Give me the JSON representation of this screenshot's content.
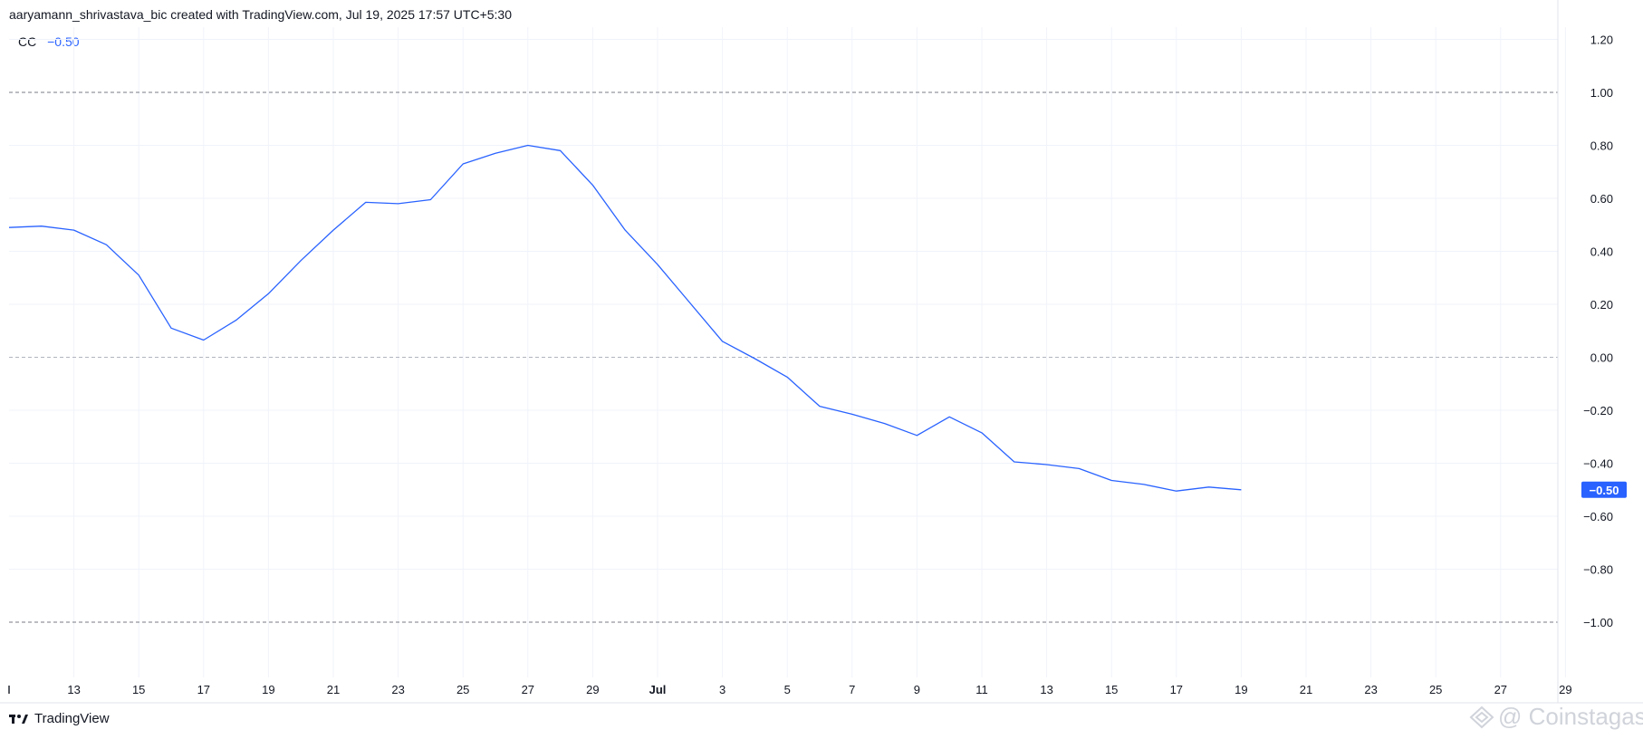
{
  "header": {
    "attribution": "aaryamann_shrivastava_bic created with TradingView.com, Jul 19, 2025 17:57 UTC+5:30"
  },
  "legend": {
    "name": "CC",
    "value": "−0.50"
  },
  "brand": {
    "label": "TradingView",
    "icon": "tradingview-logo-icon"
  },
  "watermark": {
    "label": "@ Coinstagas",
    "icon": "coinstats-logo-icon"
  },
  "colors": {
    "line": "#2962ff",
    "grid": "#f0f3fa",
    "refline": "#787b86",
    "text": "#131722",
    "badge_bg": "#2962ff",
    "badge_text": "#ffffff"
  },
  "chart_data": {
    "type": "line",
    "title": "",
    "series": [
      {
        "name": "CC",
        "points": [
          [
            "2025-06-11",
            0.49
          ],
          [
            "2025-06-12",
            0.495
          ],
          [
            "2025-06-13",
            0.48
          ],
          [
            "2025-06-14",
            0.425
          ],
          [
            "2025-06-15",
            0.31
          ],
          [
            "2025-06-16",
            0.11
          ],
          [
            "2025-06-17",
            0.065
          ],
          [
            "2025-06-18",
            0.14
          ],
          [
            "2025-06-19",
            0.24
          ],
          [
            "2025-06-20",
            0.365
          ],
          [
            "2025-06-21",
            0.48
          ],
          [
            "2025-06-22",
            0.585
          ],
          [
            "2025-06-23",
            0.58
          ],
          [
            "2025-06-24",
            0.595
          ],
          [
            "2025-06-25",
            0.73
          ],
          [
            "2025-06-26",
            0.77
          ],
          [
            "2025-06-27",
            0.8
          ],
          [
            "2025-06-28",
            0.78
          ],
          [
            "2025-06-29",
            0.65
          ],
          [
            "2025-06-30",
            0.48
          ],
          [
            "2025-07-01",
            0.35
          ],
          [
            "2025-07-02",
            0.205
          ],
          [
            "2025-07-03",
            0.06
          ],
          [
            "2025-07-04",
            -0.005
          ],
          [
            "2025-07-05",
            -0.075
          ],
          [
            "2025-07-06",
            -0.185
          ],
          [
            "2025-07-07",
            -0.215
          ],
          [
            "2025-07-08",
            -0.25
          ],
          [
            "2025-07-09",
            -0.295
          ],
          [
            "2025-07-10",
            -0.225
          ],
          [
            "2025-07-11",
            -0.285
          ],
          [
            "2025-07-12",
            -0.395
          ],
          [
            "2025-07-13",
            -0.405
          ],
          [
            "2025-07-14",
            -0.42
          ],
          [
            "2025-07-15",
            -0.465
          ],
          [
            "2025-07-16",
            -0.48
          ],
          [
            "2025-07-17",
            -0.505
          ],
          [
            "2025-07-18",
            -0.49
          ],
          [
            "2025-07-19",
            -0.5
          ]
        ]
      }
    ],
    "x_range": [
      "2025-06-11",
      "2025-07-29"
    ],
    "x_ticks": [
      {
        "date": "2025-06-13",
        "label": "13"
      },
      {
        "date": "2025-06-15",
        "label": "15"
      },
      {
        "date": "2025-06-17",
        "label": "17"
      },
      {
        "date": "2025-06-19",
        "label": "19"
      },
      {
        "date": "2025-06-21",
        "label": "21"
      },
      {
        "date": "2025-06-23",
        "label": "23"
      },
      {
        "date": "2025-06-25",
        "label": "25"
      },
      {
        "date": "2025-06-27",
        "label": "27"
      },
      {
        "date": "2025-06-29",
        "label": "29"
      },
      {
        "date": "2025-07-01",
        "label": "Jul",
        "bold": true
      },
      {
        "date": "2025-07-03",
        "label": "3"
      },
      {
        "date": "2025-07-05",
        "label": "5"
      },
      {
        "date": "2025-07-07",
        "label": "7"
      },
      {
        "date": "2025-07-09",
        "label": "9"
      },
      {
        "date": "2025-07-11",
        "label": "11"
      },
      {
        "date": "2025-07-13",
        "label": "13"
      },
      {
        "date": "2025-07-15",
        "label": "15"
      },
      {
        "date": "2025-07-17",
        "label": "17"
      },
      {
        "date": "2025-07-19",
        "label": "19"
      },
      {
        "date": "2025-07-21",
        "label": "21"
      },
      {
        "date": "2025-07-23",
        "label": "23"
      },
      {
        "date": "2025-07-25",
        "label": "25"
      },
      {
        "date": "2025-07-27",
        "label": "27"
      },
      {
        "date": "2025-07-29",
        "label": "29"
      }
    ],
    "y_range": [
      -1.2,
      1.2
    ],
    "y_ticks": [
      {
        "value": 1.2,
        "label": "1.20"
      },
      {
        "value": 1.0,
        "label": "1.00"
      },
      {
        "value": 0.8,
        "label": "0.80"
      },
      {
        "value": 0.6,
        "label": "0.60"
      },
      {
        "value": 0.4,
        "label": "0.40"
      },
      {
        "value": 0.2,
        "label": "0.20"
      },
      {
        "value": 0.0,
        "label": "0.00"
      },
      {
        "value": -0.2,
        "label": "−0.20"
      },
      {
        "value": -0.4,
        "label": "−0.40"
      },
      {
        "value": -0.6,
        "label": "−0.60"
      },
      {
        "value": -0.8,
        "label": "−0.80"
      },
      {
        "value": -1.0,
        "label": "−1.00"
      }
    ],
    "reference_lines": [
      1.0,
      0.0,
      -1.0
    ],
    "last_value": {
      "value": -0.5,
      "label": "−0.50"
    },
    "y_axis_position": "right",
    "grid": true
  }
}
